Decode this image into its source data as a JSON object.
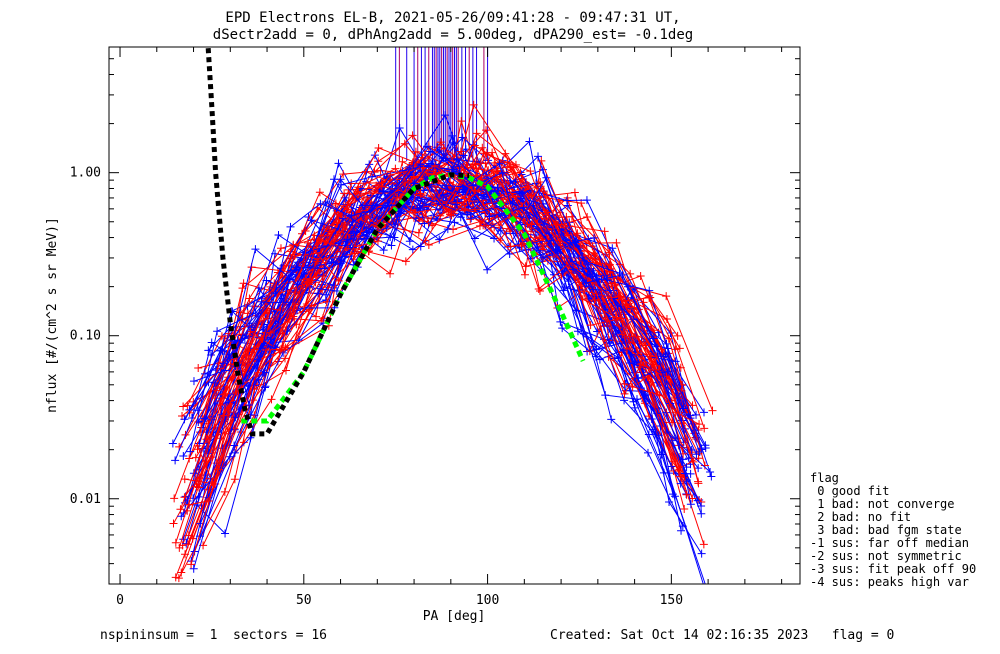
{
  "title_line1": "EPD Electrons EL-B, 2021-05-26/09:41:28 - 09:47:31 UT,",
  "title_line2": "dSectr2add = 0, dPhAng2add = 5.00deg, dPA290_est=  -0.1deg",
  "footer": {
    "left": "nspininsum =  1  sectors = 16",
    "right": "Created: Sat Oct 14 02:16:35 2023   flag = 0"
  },
  "legend": {
    "title": "flag",
    "items": [
      " 0 good fit",
      " 1 bad: not converge",
      " 2 bad: no fit",
      " 3 bad: bad fgm state",
      "-1 sus: far off median",
      "-2 sus: not symmetric",
      "-3 sus: fit peak off 90",
      "-4 sus: peaks high var"
    ]
  },
  "colors": {
    "red": "#ff0000",
    "blue": "#0000ff",
    "fit": "#00ff00",
    "model": "#000000"
  },
  "chart_data": {
    "type": "line",
    "xlabel": "PA [deg]",
    "ylabel": "nflux [#/(cm^2 s sr MeV)]",
    "xlim": [
      -3,
      185
    ],
    "ylim": [
      0.003,
      5.9
    ],
    "yscale": "log",
    "xticks": [
      0,
      50,
      100,
      150
    ],
    "xtick_labels": [
      "0",
      "50",
      "100",
      "150"
    ],
    "yticks": [
      0.01,
      0.1,
      1.0
    ],
    "ytick_labels": [
      "0.01",
      "0.10",
      "1.00"
    ],
    "series": [
      {
        "color": "red",
        "style": "line+plus",
        "center": 90,
        "peak": 0.95,
        "width": 25,
        "count": 45
      },
      {
        "color": "blue",
        "style": "line+plus",
        "center": 88,
        "peak": 0.9,
        "width": 25,
        "count": 45
      }
    ],
    "fit_curve": {
      "color": "green",
      "style": "dashed",
      "x": [
        33,
        40,
        50,
        60,
        70,
        80,
        85,
        90,
        95,
        100,
        110,
        120,
        126
      ],
      "y": [
        0.03,
        0.03,
        0.06,
        0.18,
        0.45,
        0.8,
        0.93,
        0.97,
        0.93,
        0.82,
        0.42,
        0.14,
        0.07
      ]
    },
    "model_curve": {
      "color": "black",
      "style": "dashed",
      "x": [
        24,
        25,
        26,
        28,
        30,
        32,
        34,
        36,
        40,
        50,
        60,
        70,
        80,
        90,
        95
      ],
      "y": [
        5.8,
        2.5,
        1.0,
        0.3,
        0.12,
        0.06,
        0.035,
        0.025,
        0.025,
        0.06,
        0.18,
        0.45,
        0.8,
        0.97,
        0.96
      ]
    },
    "vertical_lines_x": [
      75,
      76,
      78,
      80,
      81,
      82,
      83,
      84,
      85,
      85.5,
      86,
      86.5,
      87,
      87.5,
      88,
      88.5,
      89,
      89.5,
      90,
      90.5,
      91,
      91.5,
      92,
      93,
      94,
      95,
      96,
      97,
      99,
      100
    ]
  }
}
